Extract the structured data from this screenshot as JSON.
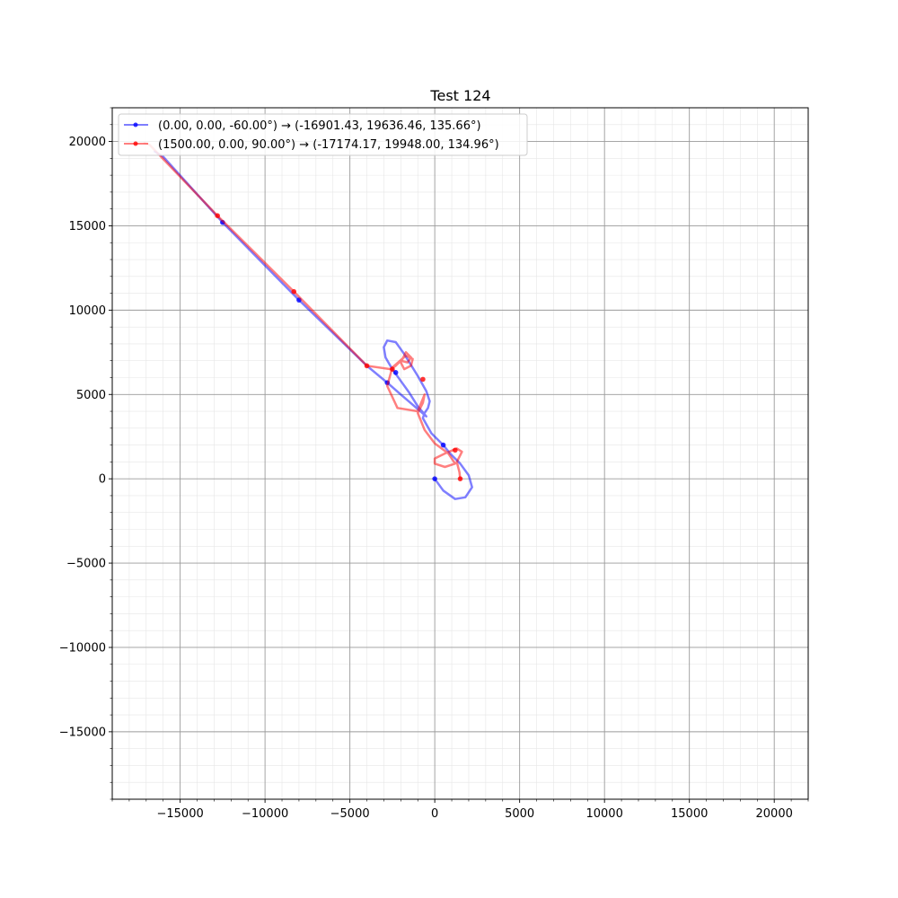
{
  "chart_data": {
    "type": "line",
    "title": "Test 124",
    "xlabel": "",
    "ylabel": "",
    "xlim": [
      -19000,
      22000
    ],
    "ylim": [
      -19000,
      22000
    ],
    "x_ticks": [
      -15000,
      -10000,
      -5000,
      0,
      5000,
      10000,
      15000,
      20000
    ],
    "y_ticks": [
      -15000,
      -10000,
      -5000,
      0,
      5000,
      10000,
      15000,
      20000
    ],
    "x_tick_labels": [
      "−15000",
      "−10000",
      "−5000",
      "0",
      "5000",
      "10000",
      "15000",
      "20000"
    ],
    "y_tick_labels": [
      "−15000",
      "−10000",
      "−5000",
      "0",
      "5000",
      "10000",
      "15000",
      "20000"
    ],
    "grid": true,
    "minor_grid": true,
    "legend_position": "top-left",
    "series": [
      {
        "name": "(0.00, 0.00, -60.00°) → (-16901.43, 19636.46, 135.66°)",
        "color": "#0000ff",
        "x": [
          0,
          500,
          1200,
          1800,
          2200,
          2000,
          1500,
          900,
          500,
          -200,
          -700,
          -600,
          -400,
          -300,
          -500,
          -1000,
          -1800,
          -2300,
          -2800,
          -3000,
          -2900,
          -2500,
          -2000,
          -1500,
          -1000,
          -500,
          -2000,
          -2800,
          -4000,
          -8000,
          -12500,
          -16000,
          -16500
        ],
        "y": [
          0,
          -700,
          -1200,
          -1100,
          -500,
          200,
          900,
          1500,
          2000,
          2700,
          3600,
          3900,
          4200,
          4600,
          5200,
          6100,
          7400,
          8100,
          8200,
          7800,
          7200,
          6500,
          5800,
          5100,
          4300,
          3700,
          5000,
          5700,
          6700,
          10600,
          15200,
          19100,
          19400
        ],
        "markers_x": [
          0,
          500,
          -2300,
          -2800,
          -8000,
          -12500
        ],
        "markers_y": [
          0,
          2000,
          6300,
          5700,
          10600,
          15200
        ]
      },
      {
        "name": "(1500.00, 0.00, 90.00°) → (-17174.17, 19948.00, 134.96°)",
        "color": "#ff0000",
        "x": [
          1500,
          1450,
          1300,
          1500,
          1600,
          1300,
          600,
          0,
          0,
          600,
          1200,
          800,
          0,
          -600,
          -1000,
          -700,
          -600,
          -1000,
          -2200,
          -2800,
          -2500,
          -1700,
          -1300,
          -1400,
          -1800,
          -2000,
          -1700,
          -1400,
          -1600,
          -2000,
          -2300,
          -2600,
          -4000,
          -8300,
          -12800,
          -16800,
          -17100
        ],
        "y": [
          0,
          400,
          1000,
          1400,
          1600,
          1800,
          1500,
          1200,
          900,
          700,
          900,
          1500,
          2100,
          2900,
          3900,
          4500,
          5000,
          4000,
          4200,
          5500,
          6600,
          7300,
          7100,
          6700,
          6500,
          6900,
          7500,
          7200,
          6900,
          7000,
          6700,
          6500,
          6700,
          11100,
          15600,
          19800,
          19900
        ],
        "markers_x": [
          1500,
          1200,
          -700,
          -2500,
          -4000,
          -8300,
          -12800
        ],
        "markers_y": [
          0,
          1700,
          5900,
          6500,
          6700,
          11100,
          15600
        ]
      }
    ]
  }
}
